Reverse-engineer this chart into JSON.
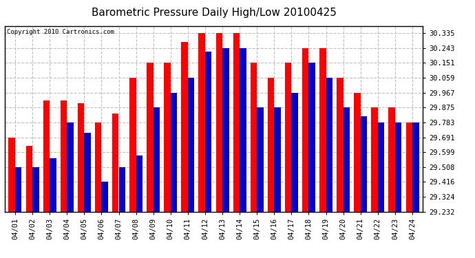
{
  "title": "Barometric Pressure Daily High/Low 20100425",
  "copyright": "Copyright 2010 Cartronics.com",
  "dates": [
    "04/01",
    "04/02",
    "04/03",
    "04/04",
    "04/05",
    "04/06",
    "04/07",
    "04/08",
    "04/09",
    "04/10",
    "04/11",
    "04/12",
    "04/13",
    "04/14",
    "04/15",
    "04/16",
    "04/17",
    "04/18",
    "04/19",
    "04/20",
    "04/21",
    "04/22",
    "04/23",
    "04/24"
  ],
  "highs": [
    29.691,
    29.64,
    29.92,
    29.92,
    29.9,
    29.783,
    29.84,
    30.059,
    30.151,
    30.151,
    30.28,
    30.335,
    30.335,
    30.335,
    30.151,
    30.059,
    30.151,
    30.243,
    30.243,
    30.059,
    29.967,
    29.875,
    29.875,
    29.783
  ],
  "lows": [
    29.508,
    29.508,
    29.56,
    29.783,
    29.72,
    29.416,
    29.508,
    29.58,
    29.875,
    29.967,
    30.059,
    30.22,
    30.243,
    30.243,
    29.875,
    29.875,
    29.967,
    30.151,
    30.059,
    29.875,
    29.82,
    29.783,
    29.783,
    29.783
  ],
  "bar_width": 0.38,
  "high_color": "#ff0000",
  "low_color": "#0000cc",
  "bg_color": "#ffffff",
  "plot_bg_color": "#ffffff",
  "grid_color": "#c0c0c0",
  "yticks": [
    29.232,
    29.324,
    29.416,
    29.508,
    29.599,
    29.691,
    29.783,
    29.875,
    29.967,
    30.059,
    30.151,
    30.243,
    30.335
  ],
  "ymin": 29.232,
  "ymax": 30.38,
  "title_fontsize": 11,
  "tick_fontsize": 7.5,
  "copyright_fontsize": 6.5
}
